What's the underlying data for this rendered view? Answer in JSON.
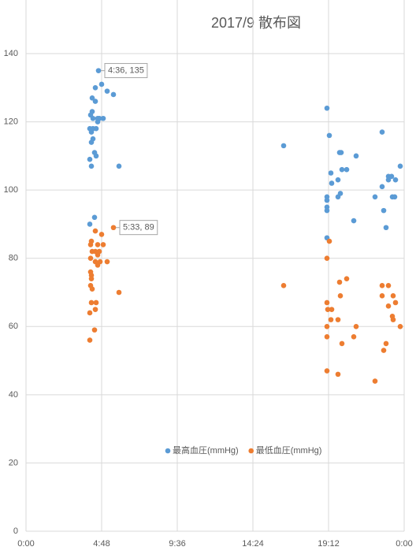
{
  "chart_data": {
    "type": "scatter",
    "title": "2017/9 散布図",
    "xlim": [
      0,
      24
    ],
    "ylim": [
      0,
      150
    ],
    "xticks": [
      {
        "value": 0,
        "label": "0:00"
      },
      {
        "value": 4.8,
        "label": "4:48"
      },
      {
        "value": 9.6,
        "label": "9:36"
      },
      {
        "value": 14.4,
        "label": "14:24"
      },
      {
        "value": 19.2,
        "label": "19:12"
      },
      {
        "value": 24,
        "label": "0:00"
      }
    ],
    "yticks": [
      0,
      20,
      40,
      60,
      80,
      100,
      120,
      140
    ],
    "grid": true,
    "legend": "bottom",
    "series": [
      {
        "name": "最高血圧(mmHg)",
        "color": "#5b9bd5",
        "x": [
          4.6,
          4.8,
          4.4,
          5.15,
          5.55,
          4.2,
          4.4,
          4.2,
          4.1,
          4.25,
          4.55,
          4.65,
          4.9,
          4.55,
          4.05,
          4.25,
          4.45,
          4.15,
          4.25,
          4.15,
          4.35,
          4.45,
          4.05,
          4.15,
          5.9,
          4.05,
          4.35,
          16.35,
          19.1,
          19.25,
          19.9,
          20.0,
          19.35,
          20.05,
          20.35,
          20.95,
          19.8,
          19.4,
          19.1,
          19.1,
          19.95,
          19.8,
          19.1,
          19.1,
          20.8,
          19.1,
          22.6,
          22.15,
          22.6,
          22.7,
          22.85,
          23.0,
          23.0,
          23.2,
          23.45,
          23.25,
          23.4,
          23.75
        ],
        "values": [
          135,
          131,
          130,
          129,
          128,
          127,
          126,
          123,
          122,
          121,
          121,
          121,
          121,
          120,
          118,
          118,
          118,
          117,
          115,
          114,
          111,
          110,
          109,
          107,
          107,
          90,
          92,
          113,
          124,
          116,
          111,
          111,
          105,
          106,
          106,
          110,
          103,
          102,
          98,
          97,
          99,
          98,
          95,
          94,
          91,
          86,
          117,
          98,
          101,
          94,
          89,
          104,
          103,
          104,
          103,
          98,
          98,
          107
        ]
      },
      {
        "name": "最低血圧(mmHg)",
        "color": "#ed7d31",
        "x": [
          5.55,
          4.8,
          4.4,
          4.15,
          4.1,
          4.55,
          4.9,
          4.2,
          4.4,
          4.65,
          4.55,
          4.1,
          4.4,
          4.7,
          5.15,
          4.55,
          4.1,
          4.15,
          4.15,
          4.1,
          4.2,
          5.9,
          4.15,
          4.45,
          4.4,
          4.05,
          4.35,
          4.05,
          16.35,
          19.25,
          19.1,
          20.35,
          19.9,
          19.95,
          19.1,
          19.15,
          19.4,
          19.35,
          19.8,
          19.1,
          20.95,
          19.1,
          20.8,
          20.05,
          19.1,
          19.8,
          22.6,
          23.0,
          22.6,
          23.3,
          23.45,
          23.0,
          23.25,
          23.3,
          23.75,
          22.85,
          22.7,
          22.15
        ],
        "values": [
          89,
          87,
          88,
          85,
          84,
          84,
          84,
          82,
          82,
          82,
          81,
          80,
          79,
          79,
          79,
          78,
          76,
          75,
          74,
          72,
          71,
          70,
          67,
          67,
          65,
          64,
          59,
          56,
          72,
          85,
          80,
          74,
          73,
          69,
          67,
          65,
          65,
          62,
          62,
          60,
          60,
          57,
          57,
          55,
          47,
          46,
          72,
          72,
          69,
          69,
          67,
          66,
          63,
          62,
          60,
          55,
          53,
          44
        ]
      }
    ],
    "annotations": [
      {
        "text": "4:36, 135",
        "x": 4.6,
        "y": 135
      },
      {
        "text": "5:33, 89",
        "x": 5.55,
        "y": 89
      }
    ]
  }
}
